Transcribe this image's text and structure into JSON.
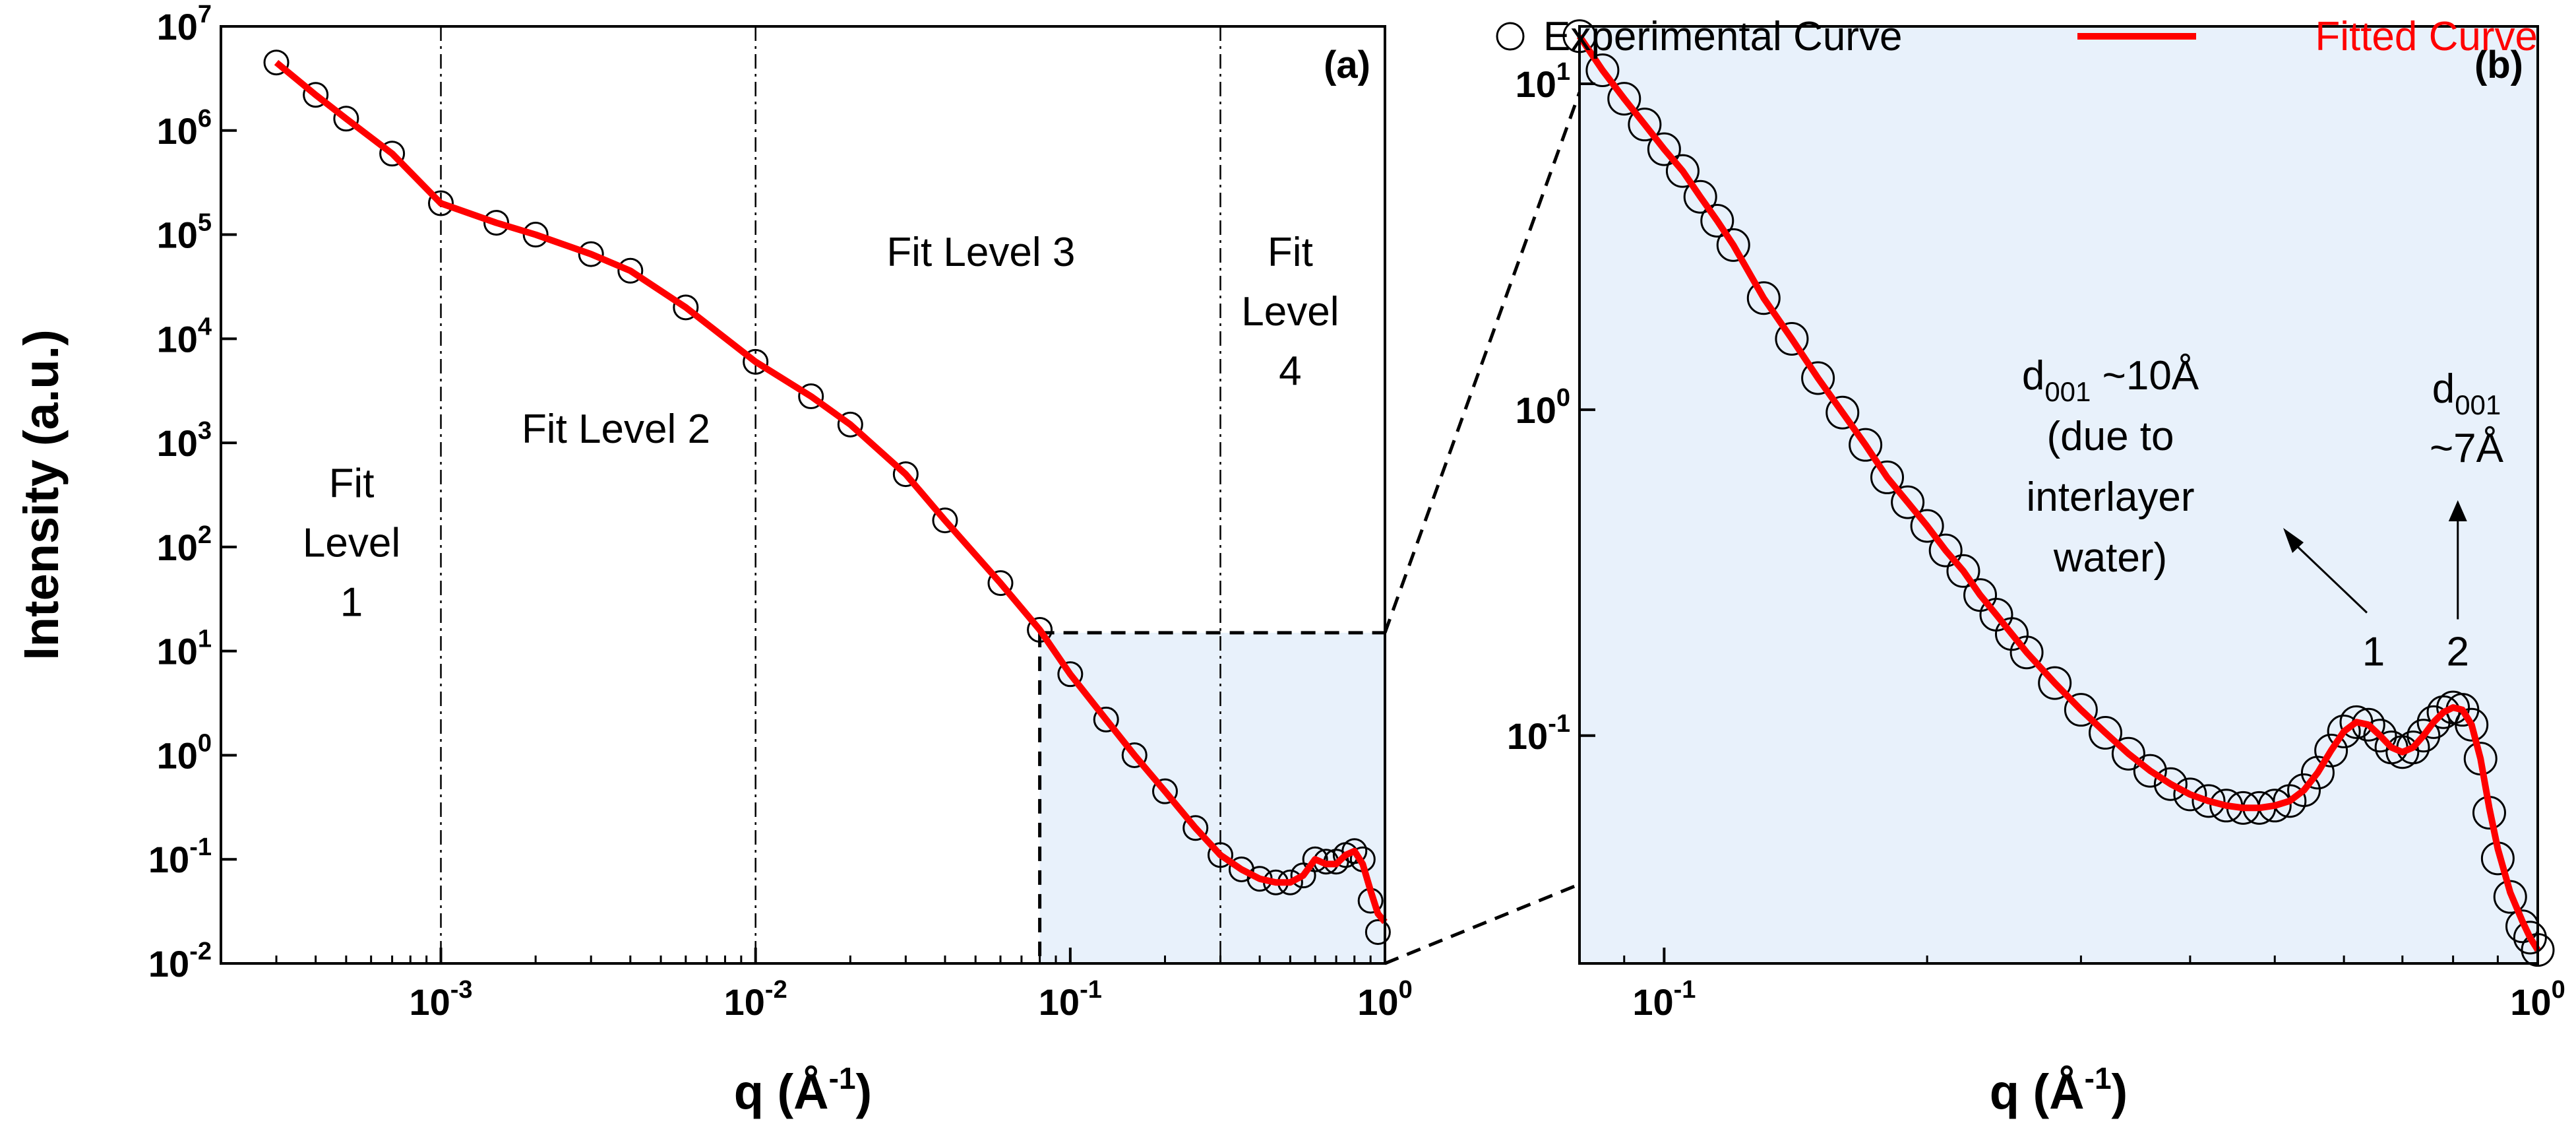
{
  "chart_data": [
    {
      "panel": "(a)",
      "type": "scatter",
      "xscale": "log",
      "yscale": "log",
      "xlim": [
        0.0002,
        1
      ],
      "ylim": [
        0.01,
        10000000
      ],
      "xlabel": "q (Å⁻¹)",
      "ylabel": "Intensity (a.u.)",
      "xticks": [
        {
          "base": "10",
          "exp": "-3",
          "value": 0.001
        },
        {
          "base": "10",
          "exp": "-2",
          "value": 0.01
        },
        {
          "base": "10",
          "exp": "-1",
          "value": 0.1
        },
        {
          "base": "10",
          "exp": "0",
          "value": 1
        }
      ],
      "yticks": [
        {
          "base": "10",
          "exp": "-2",
          "value": 0.01
        },
        {
          "base": "10",
          "exp": "-1",
          "value": 0.1
        },
        {
          "base": "10",
          "exp": "0",
          "value": 1
        },
        {
          "base": "10",
          "exp": "1",
          "value": 10
        },
        {
          "base": "10",
          "exp": "2",
          "value": 100
        },
        {
          "base": "10",
          "exp": "3",
          "value": 1000
        },
        {
          "base": "10",
          "exp": "4",
          "value": 10000
        },
        {
          "base": "10",
          "exp": "5",
          "value": 100000
        },
        {
          "base": "10",
          "exp": "6",
          "value": 1000000
        },
        {
          "base": "10",
          "exp": "7",
          "value": 10000000
        }
      ],
      "vlines": [
        0.001,
        0.01,
        0.3
      ],
      "zoom_box": {
        "x": [
          0.08,
          1
        ],
        "y": [
          0.01,
          15
        ]
      },
      "region_labels": [
        {
          "lines": [
            "Fit",
            "Level",
            "1"
          ],
          "q": 0.00052,
          "I": 300
        },
        {
          "lines": [
            "Fit Level 2"
          ],
          "q": 0.0036,
          "I": 1000
        },
        {
          "lines": [
            "Fit Level 3"
          ],
          "q": 0.052,
          "I": 50000
        },
        {
          "lines": [
            "Fit",
            "Level",
            "4"
          ],
          "q": 0.5,
          "I": 50000
        }
      ],
      "panel_label": "(a)",
      "series": [
        {
          "name": "Experimental Curve",
          "style": "open-circle",
          "x": [
            0.0003,
            0.0004,
            0.0005,
            0.0007,
            0.001,
            0.0015,
            0.002,
            0.003,
            0.004,
            0.006,
            0.01,
            0.015,
            0.02,
            0.03,
            0.04,
            0.06,
            0.08,
            0.1,
            0.13,
            0.16,
            0.2,
            0.25,
            0.3,
            0.35,
            0.4,
            0.45,
            0.5,
            0.55,
            0.6,
            0.65,
            0.7,
            0.75,
            0.8,
            0.85,
            0.9,
            0.95
          ],
          "y": [
            4500000,
            2200000,
            1300000,
            600000,
            200000,
            130000,
            100000,
            65000,
            45000,
            20000,
            6000,
            2800,
            1500,
            500,
            180,
            45,
            16,
            6,
            2.2,
            1,
            0.45,
            0.2,
            0.11,
            0.08,
            0.065,
            0.06,
            0.06,
            0.07,
            0.1,
            0.095,
            0.095,
            0.11,
            0.12,
            0.1,
            0.04,
            0.02
          ]
        },
        {
          "name": "Fitted Curve",
          "style": "line",
          "color": "#ff0000",
          "x": [
            0.0003,
            0.0004,
            0.0005,
            0.0007,
            0.001,
            0.0015,
            0.002,
            0.003,
            0.004,
            0.006,
            0.01,
            0.015,
            0.02,
            0.03,
            0.04,
            0.06,
            0.08,
            0.1,
            0.13,
            0.16,
            0.2,
            0.25,
            0.3,
            0.35,
            0.4,
            0.45,
            0.5,
            0.55,
            0.6,
            0.65,
            0.7,
            0.75,
            0.8,
            0.85,
            0.9,
            0.95,
            1
          ],
          "y": [
            4500000,
            2200000,
            1300000,
            600000,
            200000,
            130000,
            100000,
            65000,
            45000,
            20000,
            6000,
            2800,
            1500,
            500,
            180,
            45,
            16,
            6,
            2.2,
            1,
            0.45,
            0.2,
            0.11,
            0.08,
            0.065,
            0.06,
            0.06,
            0.07,
            0.1,
            0.09,
            0.09,
            0.11,
            0.12,
            0.09,
            0.05,
            0.03,
            0.025
          ]
        }
      ]
    },
    {
      "panel": "(b)",
      "type": "scatter",
      "xscale": "log",
      "yscale": "log",
      "xlim": [
        0.08,
        1
      ],
      "ylim": [
        0.02,
        15
      ],
      "xlabel": "q (Å⁻¹)",
      "ylabel": "",
      "xticks": [
        {
          "base": "10",
          "exp": "-1",
          "value": 0.1
        },
        {
          "base": "10",
          "exp": "0",
          "value": 1
        }
      ],
      "yticks": [
        {
          "base": "10",
          "exp": "-1",
          "value": 0.1
        },
        {
          "base": "10",
          "exp": "0",
          "value": 1
        },
        {
          "base": "10",
          "exp": "1",
          "value": 10
        }
      ],
      "panel_label": "(b)",
      "annotations": [
        {
          "sub": "001",
          "lines": [
            "~10Å",
            "(due to",
            "interlayer",
            "water)"
          ],
          "peak_label": "1",
          "peak_q": 0.66,
          "peak_I": 0.13
        },
        {
          "sub": "001",
          "lines": [
            "~7Å"
          ],
          "peak_label": "2",
          "peak_q": 0.81,
          "peak_I": 0.13
        }
      ],
      "series": [
        {
          "name": "Experimental Curve",
          "style": "open-circle",
          "x": [
            0.08,
            0.085,
            0.09,
            0.095,
            0.1,
            0.105,
            0.11,
            0.115,
            0.12,
            0.13,
            0.14,
            0.15,
            0.16,
            0.17,
            0.18,
            0.19,
            0.2,
            0.21,
            0.22,
            0.23,
            0.24,
            0.25,
            0.26,
            0.28,
            0.3,
            0.32,
            0.34,
            0.36,
            0.38,
            0.4,
            0.42,
            0.44,
            0.46,
            0.48,
            0.5,
            0.52,
            0.54,
            0.56,
            0.58,
            0.6,
            0.62,
            0.64,
            0.66,
            0.68,
            0.7,
            0.72,
            0.74,
            0.76,
            0.78,
            0.8,
            0.82,
            0.84,
            0.86,
            0.88,
            0.9,
            0.93,
            0.96,
            0.98,
            1.0
          ],
          "y": [
            14,
            11,
            9,
            7.5,
            6.3,
            5.4,
            4.5,
            3.8,
            3.2,
            2.2,
            1.65,
            1.25,
            0.98,
            0.78,
            0.62,
            0.52,
            0.44,
            0.37,
            0.32,
            0.27,
            0.235,
            0.205,
            0.18,
            0.145,
            0.12,
            0.102,
            0.088,
            0.078,
            0.071,
            0.066,
            0.063,
            0.061,
            0.06,
            0.06,
            0.061,
            0.063,
            0.068,
            0.077,
            0.09,
            0.103,
            0.11,
            0.108,
            0.1,
            0.092,
            0.089,
            0.092,
            0.1,
            0.11,
            0.118,
            0.122,
            0.12,
            0.108,
            0.085,
            0.058,
            0.042,
            0.032,
            0.026,
            0.024,
            0.022
          ]
        },
        {
          "name": "Fitted Curve",
          "style": "line",
          "color": "#ff0000",
          "x": [
            0.08,
            0.085,
            0.09,
            0.095,
            0.1,
            0.105,
            0.11,
            0.115,
            0.12,
            0.13,
            0.14,
            0.15,
            0.16,
            0.17,
            0.18,
            0.19,
            0.2,
            0.21,
            0.22,
            0.23,
            0.24,
            0.25,
            0.26,
            0.28,
            0.3,
            0.32,
            0.34,
            0.36,
            0.38,
            0.4,
            0.42,
            0.44,
            0.46,
            0.48,
            0.5,
            0.52,
            0.54,
            0.56,
            0.58,
            0.6,
            0.62,
            0.64,
            0.66,
            0.68,
            0.7,
            0.72,
            0.74,
            0.76,
            0.78,
            0.8,
            0.82,
            0.84,
            0.86,
            0.88,
            0.9,
            0.93,
            0.96,
            0.98,
            1.0
          ],
          "y": [
            14,
            11,
            9,
            7.5,
            6.3,
            5.4,
            4.5,
            3.8,
            3.2,
            2.2,
            1.65,
            1.25,
            0.98,
            0.78,
            0.62,
            0.52,
            0.44,
            0.37,
            0.32,
            0.27,
            0.235,
            0.205,
            0.18,
            0.145,
            0.12,
            0.102,
            0.088,
            0.078,
            0.071,
            0.066,
            0.063,
            0.061,
            0.06,
            0.06,
            0.061,
            0.063,
            0.068,
            0.077,
            0.09,
            0.103,
            0.11,
            0.108,
            0.1,
            0.092,
            0.089,
            0.092,
            0.1,
            0.11,
            0.118,
            0.122,
            0.12,
            0.108,
            0.085,
            0.06,
            0.045,
            0.033,
            0.027,
            0.024,
            0.022
          ]
        }
      ]
    }
  ],
  "legend": {
    "items": [
      {
        "label": "Experimental Curve",
        "color": "#000000",
        "marker": "open-circle"
      },
      {
        "label": "Fitted Curve",
        "color": "#ff0000",
        "marker": "line"
      }
    ],
    "placement": "top-right"
  },
  "colors": {
    "zoom_fill": "#e8f1fb",
    "fit_line": "#ff0000",
    "axis": "#000000"
  }
}
